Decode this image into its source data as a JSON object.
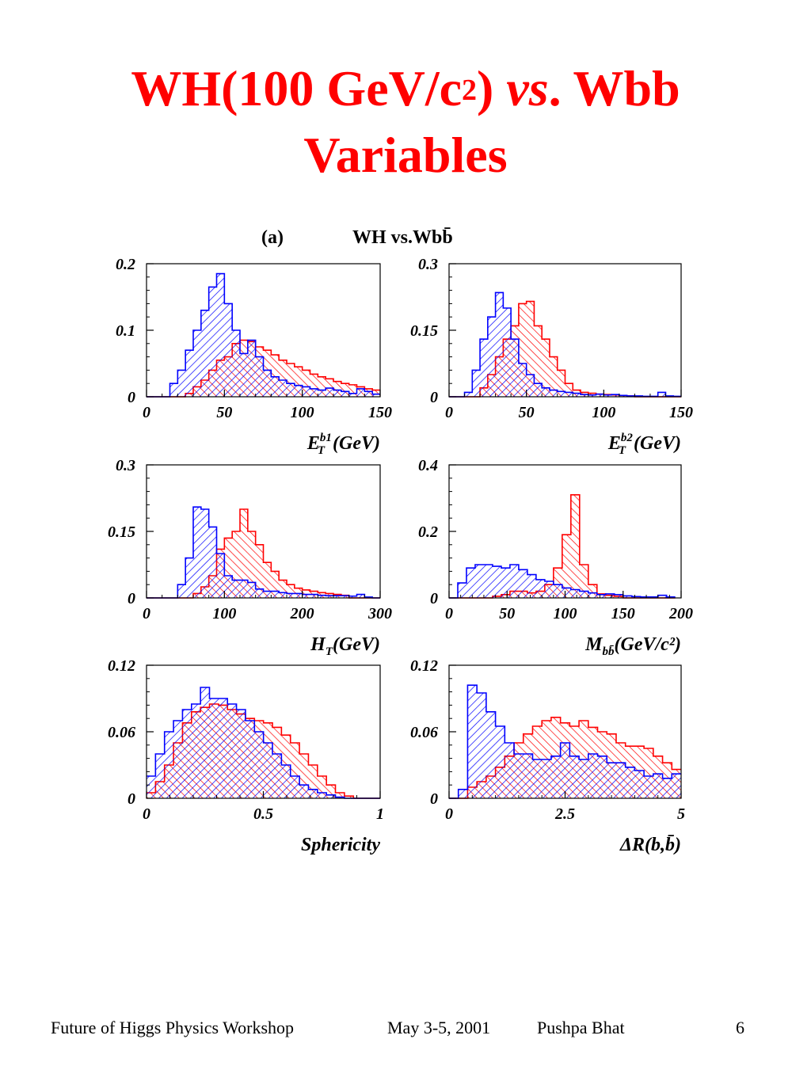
{
  "title": {
    "line1_prefix": "WH(100 GeV/c",
    "line1_sup": "2",
    "line1_mid": ") ",
    "line1_vs": "vs",
    "line1_suffix": ". Wbb",
    "line2": "Variables"
  },
  "figure": {
    "panel_label": "(a)",
    "heading": "WH vs.Wbb̄"
  },
  "colors": {
    "signal": "#ff0000",
    "background": "#0000ff",
    "title": "#ff0000"
  },
  "chart_data": [
    {
      "type": "bar",
      "xlabel": "E_T^{b1}(GeV)",
      "xlabel_parts": {
        "main": "E",
        "sub": "T",
        "sup": "b1",
        "rest": "(GeV)"
      },
      "xlim": [
        0,
        150
      ],
      "ylim": [
        0,
        0.2
      ],
      "xticks": [
        0,
        50,
        100,
        150
      ],
      "yticks": [
        0,
        0.1,
        0.2
      ],
      "ytick_labels": [
        "0",
        "0.1",
        "0.2"
      ],
      "series": [
        {
          "key": "WH",
          "color": "#ff0000",
          "hatch": "up",
          "x0": 0,
          "bin": 5,
          "values": [
            0,
            0,
            0,
            0,
            0,
            0.005,
            0.015,
            0.025,
            0.04,
            0.055,
            0.06,
            0.08,
            0.085,
            0.083,
            0.075,
            0.07,
            0.063,
            0.055,
            0.05,
            0.045,
            0.04,
            0.034,
            0.03,
            0.027,
            0.023,
            0.02,
            0.018,
            0.015,
            0.012,
            0.01
          ]
        },
        {
          "key": "Wbb",
          "color": "#0000ff",
          "hatch": "down",
          "x0": 0,
          "bin": 5,
          "values": [
            0,
            0,
            0,
            0.02,
            0.04,
            0.07,
            0.1,
            0.13,
            0.165,
            0.185,
            0.14,
            0.1,
            0.065,
            0.085,
            0.06,
            0.04,
            0.03,
            0.025,
            0.02,
            0.017,
            0.015,
            0.012,
            0.01,
            0.013,
            0.01,
            0.008,
            0.005,
            0.012,
            0.008,
            0.004
          ]
        }
      ]
    },
    {
      "type": "bar",
      "xlabel": "E_T^{b2}(GeV)",
      "xlabel_parts": {
        "main": "E",
        "sub": "T",
        "sup": "b2",
        "rest": "(GeV)"
      },
      "xlim": [
        0,
        150
      ],
      "ylim": [
        0,
        0.3
      ],
      "xticks": [
        0,
        50,
        100,
        150
      ],
      "yticks": [
        0,
        0.15,
        0.3
      ],
      "ytick_labels": [
        "0",
        "0.15",
        "0.3"
      ],
      "series": [
        {
          "key": "WH",
          "color": "#ff0000",
          "hatch": "up",
          "x0": 0,
          "bin": 5,
          "values": [
            0,
            0,
            0,
            0,
            0.02,
            0.05,
            0.09,
            0.13,
            0.16,
            0.21,
            0.215,
            0.16,
            0.13,
            0.09,
            0.06,
            0.03,
            0.015,
            0.01,
            0.008,
            0.006,
            0.005,
            0.004,
            0.003,
            0.002,
            0,
            0,
            0,
            0,
            0,
            0
          ]
        },
        {
          "key": "Wbb",
          "color": "#0000ff",
          "hatch": "down",
          "x0": 0,
          "bin": 5,
          "values": [
            0,
            0,
            0.01,
            0.06,
            0.13,
            0.18,
            0.235,
            0.2,
            0.13,
            0.075,
            0.05,
            0.03,
            0.02,
            0.015,
            0.012,
            0.01,
            0.008,
            0.005,
            0.004,
            0.006,
            0.004,
            0.005,
            0.003,
            0.002,
            0.002,
            0.001,
            0.001,
            0.01,
            0.002,
            0.001
          ]
        }
      ]
    },
    {
      "type": "bar",
      "xlabel": "H_T(GeV)",
      "xlabel_parts": {
        "main": "H",
        "sub": "T",
        "sup": "",
        "rest": "(GeV)"
      },
      "xlim": [
        0,
        300
      ],
      "ylim": [
        0,
        0.3
      ],
      "xticks": [
        0,
        100,
        200,
        300
      ],
      "yticks": [
        0,
        0.15,
        0.3
      ],
      "ytick_labels": [
        "0",
        "0.15",
        "0.3"
      ],
      "series": [
        {
          "key": "WH",
          "color": "#ff0000",
          "hatch": "up",
          "x0": 0,
          "bin": 10,
          "values": [
            0,
            0,
            0,
            0,
            0,
            0,
            0.01,
            0.025,
            0.05,
            0.11,
            0.135,
            0.15,
            0.2,
            0.15,
            0.12,
            0.08,
            0.06,
            0.04,
            0.03,
            0.022,
            0.018,
            0.015,
            0.012,
            0.01,
            0.008,
            0.006,
            0,
            0,
            0,
            0
          ]
        },
        {
          "key": "Wbb",
          "color": "#0000ff",
          "hatch": "down",
          "x0": 0,
          "bin": 10,
          "values": [
            0,
            0,
            0,
            0,
            0.03,
            0.09,
            0.205,
            0.2,
            0.16,
            0.1,
            0.05,
            0.04,
            0.04,
            0.035,
            0.02,
            0.015,
            0.015,
            0.012,
            0.01,
            0.01,
            0.008,
            0.008,
            0.006,
            0.005,
            0.005,
            0.005,
            0.004,
            0.008,
            0.002,
            0
          ]
        }
      ]
    },
    {
      "type": "bar",
      "xlabel": "M_bb̄(GeV/c²)",
      "xlabel_parts": {
        "main": "M",
        "sub": "bb̄",
        "sup": "",
        "rest": "(GeV/c²)"
      },
      "xlim": [
        0,
        200
      ],
      "ylim": [
        0,
        0.4
      ],
      "xticks": [
        0,
        50,
        100,
        150,
        200
      ],
      "yticks": [
        0,
        0.2,
        0.4
      ],
      "ytick_labels": [
        "0",
        "0.2",
        "0.4"
      ],
      "series": [
        {
          "key": "WH",
          "color": "#ff0000",
          "hatch": "up",
          "x0": 0,
          "bin": 7.5,
          "values": [
            0,
            0,
            0,
            0,
            0,
            0.005,
            0.01,
            0.02,
            0.02,
            0.015,
            0.02,
            0.04,
            0.09,
            0.19,
            0.31,
            0.1,
            0.04,
            0.012,
            0.008,
            0.005,
            0,
            0,
            0,
            0,
            0,
            0
          ]
        },
        {
          "key": "Wbb",
          "color": "#0000ff",
          "hatch": "down",
          "x0": 0,
          "bin": 7.5,
          "values": [
            0,
            0.045,
            0.09,
            0.1,
            0.1,
            0.095,
            0.09,
            0.1,
            0.085,
            0.07,
            0.055,
            0.05,
            0.04,
            0.03,
            0.025,
            0.02,
            0.015,
            0.01,
            0.012,
            0.01,
            0.006,
            0.004,
            0.003,
            0.003,
            0.008,
            0.003
          ]
        }
      ]
    },
    {
      "type": "bar",
      "xlabel": "Sphericity",
      "xlabel_parts": {
        "main": "Sphericity",
        "sub": "",
        "sup": "",
        "rest": ""
      },
      "xlim": [
        0,
        1
      ],
      "ylim": [
        0,
        0.12
      ],
      "xticks": [
        0,
        0.5,
        1
      ],
      "yticks": [
        0,
        0.06,
        0.12
      ],
      "ytick_labels": [
        "0",
        "0.06",
        "0.12"
      ],
      "xtick_labels": [
        "0",
        "0.5",
        "1"
      ],
      "series": [
        {
          "key": "WH",
          "color": "#ff0000",
          "hatch": "up",
          "x0": 0,
          "bin": 0.0385,
          "values": [
            0.005,
            0.015,
            0.03,
            0.05,
            0.068,
            0.078,
            0.082,
            0.085,
            0.084,
            0.08,
            0.076,
            0.072,
            0.07,
            0.068,
            0.064,
            0.057,
            0.05,
            0.04,
            0.03,
            0.02,
            0.012,
            0.005,
            0.002,
            0,
            0,
            0
          ]
        },
        {
          "key": "Wbb",
          "color": "#0000ff",
          "hatch": "down",
          "x0": 0,
          "bin": 0.0385,
          "values": [
            0.02,
            0.04,
            0.06,
            0.07,
            0.08,
            0.085,
            0.1,
            0.09,
            0.09,
            0.085,
            0.08,
            0.07,
            0.06,
            0.05,
            0.04,
            0.03,
            0.02,
            0.012,
            0.008,
            0.005,
            0.003,
            0.001,
            0,
            0,
            0,
            0
          ]
        }
      ]
    },
    {
      "type": "bar",
      "xlabel": "ΔR(b,b̄)",
      "xlabel_parts": {
        "main": "ΔR(b,b̄)",
        "sub": "",
        "sup": "",
        "rest": ""
      },
      "xlim": [
        0,
        5
      ],
      "ylim": [
        0,
        0.12
      ],
      "xticks": [
        0,
        2.5,
        5
      ],
      "yticks": [
        0,
        0.06,
        0.12
      ],
      "ytick_labels": [
        "0",
        "0.06",
        "0.12"
      ],
      "xtick_labels": [
        "0",
        "2.5",
        "5"
      ],
      "series": [
        {
          "key": "WH",
          "color": "#ff0000",
          "hatch": "up",
          "x0": 0,
          "bin": 0.2,
          "values": [
            0,
            0,
            0.01,
            0.015,
            0.02,
            0.028,
            0.038,
            0.05,
            0.058,
            0.065,
            0.07,
            0.073,
            0.068,
            0.065,
            0.07,
            0.064,
            0.06,
            0.058,
            0.05,
            0.047,
            0.047,
            0.045,
            0.038,
            0.032,
            0.026,
            0.02
          ]
        },
        {
          "key": "Wbb",
          "color": "#0000ff",
          "hatch": "down",
          "x0": 0,
          "bin": 0.2,
          "values": [
            0,
            0.008,
            0.102,
            0.095,
            0.078,
            0.065,
            0.05,
            0.04,
            0.04,
            0.035,
            0.035,
            0.038,
            0.05,
            0.038,
            0.035,
            0.04,
            0.038,
            0.032,
            0.032,
            0.028,
            0.025,
            0.02,
            0.022,
            0.018,
            0.022,
            0.01
          ]
        }
      ]
    }
  ],
  "footer": {
    "workshop": "Future of Higgs Physics Workshop",
    "date": "May 3-5, 2001",
    "author": "Pushpa Bhat",
    "page": "6"
  }
}
